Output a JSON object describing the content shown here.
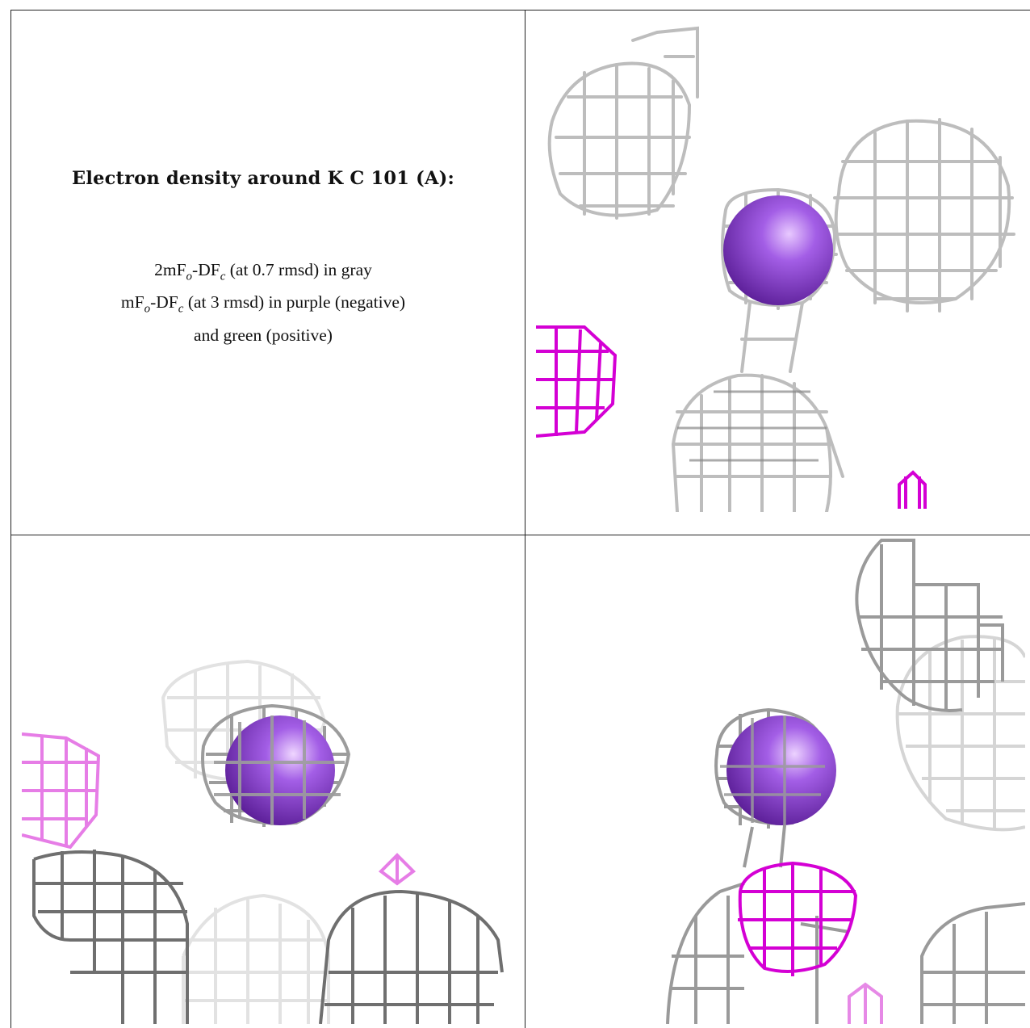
{
  "caption": {
    "title": "Electron density around K C 101 (A):",
    "line1": "2mFo-DFc (at 0.7 rmsd) in gray",
    "line2": "mFo-DFc (at 3 rmsd) in purple (negative)",
    "line3": "and green (positive)"
  },
  "panels": [
    "top-right view",
    "bottom-left view",
    "bottom-right view"
  ],
  "colors": {
    "mesh_gray": "#b9b9b9",
    "mesh_dark": "#6e6e6e",
    "mesh_magenta": "#d400d4",
    "mesh_pink": "#e98ae9",
    "ion_purple": "#8a3fd1",
    "rule": "#222222"
  }
}
